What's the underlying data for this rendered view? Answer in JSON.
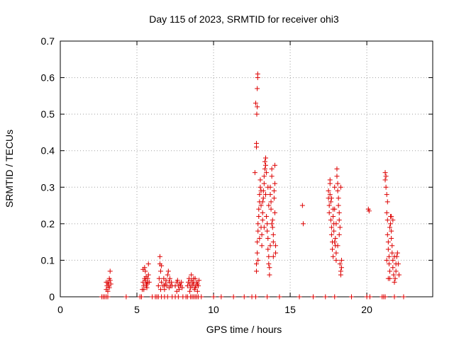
{
  "chart_data": {
    "type": "scatter",
    "title": "Day 115 of 2023, SRMTID for receiver ohi3",
    "xlabel": "GPS time / hours",
    "ylabel": "SRMTID / TECUs",
    "xlim": [
      0,
      24.3
    ],
    "ylim": [
      0,
      0.7
    ],
    "xticks": [
      0,
      5,
      10,
      15,
      20
    ],
    "xtick_labels": [
      "0",
      "5",
      "10",
      "15",
      "20"
    ],
    "yticks": [
      0,
      0.1,
      0.2,
      0.3,
      0.4,
      0.5,
      0.6,
      0.7
    ],
    "ytick_labels": [
      "0",
      "0.1",
      "0.2",
      "0.3",
      "0.4",
      "0.5",
      "0.6",
      "0.7"
    ],
    "grid": true,
    "marker": "+",
    "color": "#dd0000",
    "series": [
      {
        "name": "SRMTID",
        "points": [
          [
            2.7,
            0
          ],
          [
            2.8,
            0
          ],
          [
            2.9,
            0
          ],
          [
            3.0,
            0
          ],
          [
            3.1,
            0
          ],
          [
            3.0,
            0.02
          ],
          [
            3.05,
            0.03
          ],
          [
            3.1,
            0.04
          ],
          [
            3.15,
            0.035
          ],
          [
            3.2,
            0.025
          ],
          [
            3.25,
            0.045
          ],
          [
            3.1,
            0.015
          ],
          [
            3.2,
            0.05
          ],
          [
            3.25,
            0.07
          ],
          [
            3.0,
            0.04
          ],
          [
            3.15,
            0.03
          ],
          [
            3.3,
            0.035
          ],
          [
            4.3,
            0
          ],
          [
            5.2,
            0
          ],
          [
            5.3,
            0
          ],
          [
            5.35,
            0.02
          ],
          [
            5.4,
            0.04
          ],
          [
            5.45,
            0.03
          ],
          [
            5.5,
            0.05
          ],
          [
            5.55,
            0.045
          ],
          [
            5.6,
            0.035
          ],
          [
            5.65,
            0.025
          ],
          [
            5.7,
            0.05
          ],
          [
            5.75,
            0.06
          ],
          [
            5.5,
            0.08
          ],
          [
            5.55,
            0.07
          ],
          [
            5.6,
            0.03
          ],
          [
            5.45,
            0.02
          ],
          [
            5.7,
            0.04
          ],
          [
            5.75,
            0.09
          ],
          [
            5.8,
            0.04
          ],
          [
            5.4,
            0.075
          ],
          [
            5.6,
            0.055
          ],
          [
            5.65,
            0.035
          ],
          [
            6.0,
            0
          ],
          [
            6.2,
            0
          ],
          [
            6.3,
            0
          ],
          [
            6.4,
            0
          ],
          [
            6.6,
            0
          ],
          [
            6.8,
            0
          ],
          [
            7.0,
            0
          ],
          [
            6.4,
            0.03
          ],
          [
            6.45,
            0.05
          ],
          [
            6.5,
            0.09
          ],
          [
            6.5,
            0.11
          ],
          [
            6.55,
            0.07
          ],
          [
            6.6,
            0.04
          ],
          [
            6.7,
            0.03
          ],
          [
            6.75,
            0.05
          ],
          [
            6.8,
            0.03
          ],
          [
            6.85,
            0.035
          ],
          [
            6.9,
            0.045
          ],
          [
            6.95,
            0.03
          ],
          [
            7.0,
            0.06
          ],
          [
            7.05,
            0.07
          ],
          [
            7.1,
            0.04
          ],
          [
            7.15,
            0.05
          ],
          [
            7.2,
            0.03
          ],
          [
            7.25,
            0.04
          ],
          [
            7.3,
            0.03
          ],
          [
            6.55,
            0.02
          ],
          [
            6.8,
            0.02
          ],
          [
            7.1,
            0.025
          ],
          [
            6.6,
            0.085
          ],
          [
            7.3,
            0
          ],
          [
            7.5,
            0
          ],
          [
            7.7,
            0
          ],
          [
            8.0,
            0
          ],
          [
            8.2,
            0
          ],
          [
            7.5,
            0.03
          ],
          [
            7.6,
            0.04
          ],
          [
            7.65,
            0.045
          ],
          [
            7.7,
            0.03
          ],
          [
            7.75,
            0.02
          ],
          [
            7.8,
            0.035
          ],
          [
            7.85,
            0.03
          ],
          [
            7.9,
            0.04
          ],
          [
            7.95,
            0.025
          ],
          [
            7.6,
            0.015
          ],
          [
            8.3,
            0
          ],
          [
            8.5,
            0
          ],
          [
            8.6,
            0
          ],
          [
            8.7,
            0
          ],
          [
            8.8,
            0
          ],
          [
            8.9,
            0
          ],
          [
            9.0,
            0
          ],
          [
            9.2,
            0
          ],
          [
            8.3,
            0.03
          ],
          [
            8.35,
            0.04
          ],
          [
            8.4,
            0.05
          ],
          [
            8.45,
            0.035
          ],
          [
            8.5,
            0.025
          ],
          [
            8.55,
            0.045
          ],
          [
            8.6,
            0.03
          ],
          [
            8.65,
            0.04
          ],
          [
            8.7,
            0.035
          ],
          [
            8.75,
            0.02
          ],
          [
            8.8,
            0.05
          ],
          [
            8.85,
            0.03
          ],
          [
            8.9,
            0.04
          ],
          [
            8.95,
            0.035
          ],
          [
            9.0,
            0.03
          ],
          [
            9.05,
            0.045
          ],
          [
            8.45,
            0.015
          ],
          [
            8.8,
            0.025
          ],
          [
            8.55,
            0.06
          ],
          [
            8.7,
            0.05
          ],
          [
            8.95,
            0.015
          ],
          [
            10.0,
            0
          ],
          [
            10.5,
            0
          ],
          [
            11.3,
            0
          ],
          [
            12.0,
            0
          ],
          [
            12.5,
            0
          ],
          [
            12.75,
            0
          ],
          [
            13.5,
            0
          ],
          [
            12.7,
            0.34
          ],
          [
            12.75,
            0.53
          ],
          [
            12.8,
            0.42
          ],
          [
            12.8,
            0.41
          ],
          [
            12.82,
            0.5
          ],
          [
            12.85,
            0.52
          ],
          [
            12.85,
            0.57
          ],
          [
            12.88,
            0.6
          ],
          [
            12.88,
            0.61
          ],
          [
            12.8,
            0.07
          ],
          [
            12.8,
            0.09
          ],
          [
            12.85,
            0.12
          ],
          [
            12.85,
            0.15
          ],
          [
            12.9,
            0.18
          ],
          [
            12.9,
            0.2
          ],
          [
            12.95,
            0.22
          ],
          [
            12.95,
            0.24
          ],
          [
            13.0,
            0.26
          ],
          [
            13.0,
            0.28
          ],
          [
            13.05,
            0.3
          ],
          [
            13.05,
            0.32
          ],
          [
            13.1,
            0.25
          ],
          [
            13.1,
            0.19
          ],
          [
            13.15,
            0.17
          ],
          [
            13.15,
            0.14
          ],
          [
            13.2,
            0.21
          ],
          [
            13.2,
            0.23
          ],
          [
            13.25,
            0.27
          ],
          [
            13.25,
            0.29
          ],
          [
            13.3,
            0.31
          ],
          [
            13.3,
            0.33
          ],
          [
            13.35,
            0.35
          ],
          [
            13.35,
            0.37
          ],
          [
            13.4,
            0.38
          ],
          [
            13.4,
            0.36
          ],
          [
            13.45,
            0.34
          ],
          [
            13.45,
            0.22
          ],
          [
            13.5,
            0.2
          ],
          [
            13.5,
            0.18
          ],
          [
            13.55,
            0.16
          ],
          [
            13.55,
            0.13
          ],
          [
            13.6,
            0.11
          ],
          [
            13.6,
            0.09
          ],
          [
            13.65,
            0.06
          ],
          [
            13.65,
            0.08
          ],
          [
            13.7,
            0.3
          ],
          [
            13.7,
            0.28
          ],
          [
            13.75,
            0.26
          ],
          [
            13.75,
            0.24
          ],
          [
            13.8,
            0.35
          ],
          [
            13.8,
            0.33
          ],
          [
            13.85,
            0.21
          ],
          [
            13.85,
            0.19
          ],
          [
            13.9,
            0.17
          ],
          [
            13.9,
            0.15
          ],
          [
            13.95,
            0.27
          ],
          [
            13.95,
            0.29
          ],
          [
            14.0,
            0.31
          ],
          [
            14.0,
            0.23
          ],
          [
            14.05,
            0.14
          ],
          [
            14.05,
            0.12
          ],
          [
            12.9,
            0.1
          ],
          [
            13.0,
            0.16
          ],
          [
            13.1,
            0.29
          ],
          [
            13.2,
            0.26
          ],
          [
            13.3,
            0.19
          ],
          [
            13.4,
            0.28
          ],
          [
            13.6,
            0.25
          ],
          [
            13.7,
            0.14
          ],
          [
            13.8,
            0.2
          ],
          [
            13.9,
            0.11
          ],
          [
            14.0,
            0.36
          ],
          [
            13.55,
            0.3
          ],
          [
            14.3,
            0
          ],
          [
            15.6,
            0
          ],
          [
            15.8,
            0.25
          ],
          [
            15.85,
            0.2
          ],
          [
            16.5,
            0
          ],
          [
            17.3,
            0
          ],
          [
            17.9,
            0
          ],
          [
            19.0,
            0
          ],
          [
            17.5,
            0.29
          ],
          [
            17.5,
            0.27
          ],
          [
            17.55,
            0.25
          ],
          [
            17.55,
            0.23
          ],
          [
            17.6,
            0.31
          ],
          [
            17.6,
            0.28
          ],
          [
            17.65,
            0.26
          ],
          [
            17.65,
            0.21
          ],
          [
            17.7,
            0.19
          ],
          [
            17.7,
            0.17
          ],
          [
            17.75,
            0.15
          ],
          [
            17.75,
            0.13
          ],
          [
            17.8,
            0.11
          ],
          [
            17.8,
            0.22
          ],
          [
            17.85,
            0.2
          ],
          [
            17.85,
            0.18
          ],
          [
            17.9,
            0.24
          ],
          [
            17.9,
            0.3
          ],
          [
            17.95,
            0.16
          ],
          [
            17.95,
            0.14
          ],
          [
            18.0,
            0.12
          ],
          [
            18.0,
            0.1
          ],
          [
            18.05,
            0.35
          ],
          [
            18.05,
            0.33
          ],
          [
            18.1,
            0.31
          ],
          [
            18.1,
            0.29
          ],
          [
            18.15,
            0.27
          ],
          [
            18.15,
            0.25
          ],
          [
            18.2,
            0.23
          ],
          [
            18.2,
            0.21
          ],
          [
            18.25,
            0.19
          ],
          [
            18.25,
            0.09
          ],
          [
            18.3,
            0.07
          ],
          [
            18.3,
            0.06
          ],
          [
            18.35,
            0.08
          ],
          [
            18.35,
            0.1
          ],
          [
            17.6,
            0.32
          ],
          [
            17.7,
            0.27
          ],
          [
            17.8,
            0.24
          ],
          [
            17.9,
            0.15
          ],
          [
            18.0,
            0.2
          ],
          [
            18.1,
            0.14
          ],
          [
            18.2,
            0.17
          ],
          [
            18.3,
            0.3
          ],
          [
            20.0,
            0
          ],
          [
            20.2,
            0
          ],
          [
            20.1,
            0.24
          ],
          [
            20.15,
            0.235
          ],
          [
            21.0,
            0
          ],
          [
            21.1,
            0
          ],
          [
            21.2,
            0
          ],
          [
            21.8,
            0
          ],
          [
            22.4,
            0
          ],
          [
            21.2,
            0.34
          ],
          [
            21.25,
            0.33
          ],
          [
            21.25,
            0.3
          ],
          [
            21.3,
            0.28
          ],
          [
            21.3,
            0.23
          ],
          [
            21.35,
            0.21
          ],
          [
            21.35,
            0.17
          ],
          [
            21.4,
            0.15
          ],
          [
            21.4,
            0.13
          ],
          [
            21.45,
            0.11
          ],
          [
            21.45,
            0.09
          ],
          [
            21.5,
            0.07
          ],
          [
            21.5,
            0.05
          ],
          [
            21.55,
            0.22
          ],
          [
            21.55,
            0.2
          ],
          [
            21.6,
            0.18
          ],
          [
            21.6,
            0.16
          ],
          [
            21.65,
            0.14
          ],
          [
            21.65,
            0.12
          ],
          [
            21.7,
            0.1
          ],
          [
            21.7,
            0.08
          ],
          [
            21.75,
            0.06
          ],
          [
            21.8,
            0.04
          ],
          [
            21.85,
            0.05
          ],
          [
            21.9,
            0.07
          ],
          [
            21.9,
            0.09
          ],
          [
            21.95,
            0.11
          ],
          [
            22.0,
            0.12
          ],
          [
            22.05,
            0.09
          ],
          [
            22.1,
            0.06
          ],
          [
            21.3,
            0.1
          ],
          [
            21.4,
            0.05
          ],
          [
            21.5,
            0.19
          ],
          [
            21.6,
            0.22
          ],
          [
            21.7,
            0.21
          ],
          [
            21.8,
            0.11
          ],
          [
            21.2,
            0.32
          ],
          [
            21.35,
            0.26
          ]
        ]
      }
    ]
  }
}
